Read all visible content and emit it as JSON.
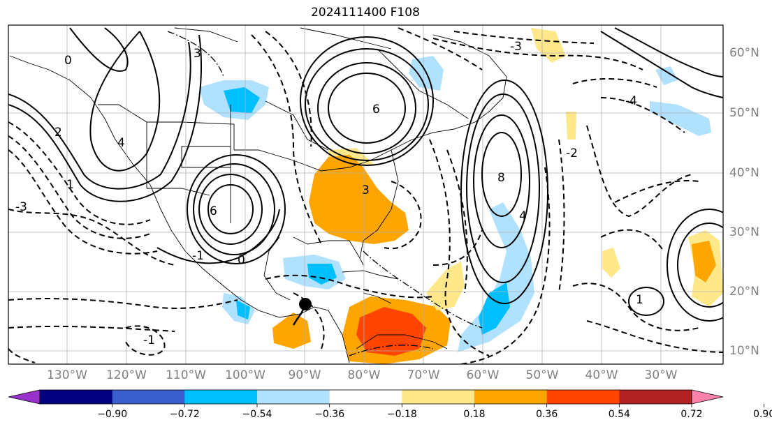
{
  "title": "2024111400 F108",
  "longitude_labels": [
    "130°W",
    "120°W",
    "110°W",
    "100°W",
    "90°W",
    "80°W",
    "70°W",
    "60°W",
    "50°W",
    "40°W",
    "30°W"
  ],
  "latitude_labels": [
    "60°N",
    "50°N",
    "40°N",
    "30°N",
    "20°N",
    "10°N"
  ],
  "colorbar": {
    "ticks": [
      "−0.90",
      "−0.72",
      "−0.54",
      "−0.36",
      "−0.18",
      "0.18",
      "0.36",
      "0.54",
      "0.72",
      "0.90"
    ],
    "colors": [
      "#9932cc",
      "#000080",
      "#3a5fcd",
      "#00bfff",
      "#b0e2ff",
      "#ffffff",
      "#ffe88a",
      "#ffa500",
      "#ff4500",
      "#b22222",
      "#ff82ab"
    ]
  },
  "contour_labels": [
    {
      "text": "0"
    },
    {
      "text": "3"
    },
    {
      "text": "2"
    },
    {
      "text": "4"
    },
    {
      "text": "1"
    },
    {
      "text": "-3"
    },
    {
      "text": "6"
    },
    {
      "text": "-1"
    },
    {
      "text": "-4"
    },
    {
      "text": "8"
    },
    {
      "text": "6"
    },
    {
      "text": "3"
    },
    {
      "text": "-2"
    },
    {
      "text": "4"
    },
    {
      "text": "-1"
    },
    {
      "text": "0"
    },
    {
      "text": "-3"
    },
    {
      "text": "1"
    }
  ],
  "marker": {
    "label": "storm-position",
    "color": "#000000"
  }
}
